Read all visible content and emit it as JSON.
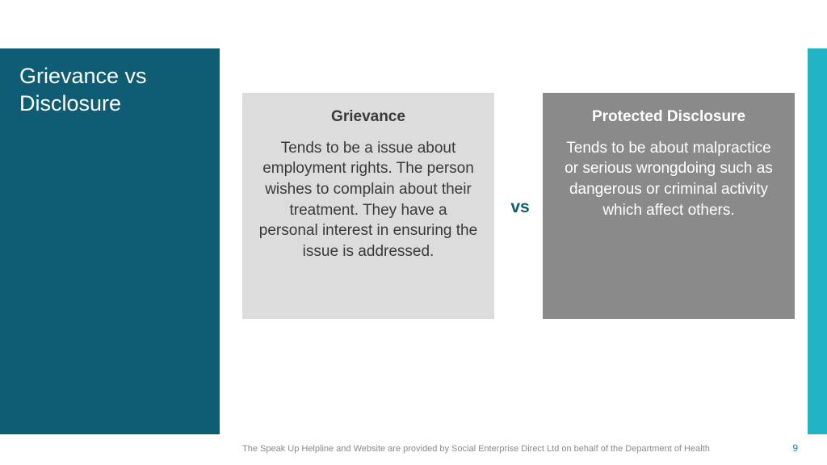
{
  "colors": {
    "panel_bg": "#0f5d74",
    "accent_bg": "#22b4c6",
    "card_left_bg": "#dcdcdc",
    "card_left_text": "#3a3a3a",
    "card_right_bg": "#8a8a8a",
    "card_right_text": "#ffffff",
    "vs_text": "#0f5d74",
    "footer_text": "#8a8a8a",
    "pagenum_text": "#0f8ca3",
    "title_text": "#ffffff"
  },
  "title": "Grievance vs Disclosure",
  "left_card": {
    "title": "Grievance",
    "body": "Tends to be a issue about employment rights. The person wishes to complain about their treatment. They have a personal interest in ensuring the issue is addressed."
  },
  "right_card": {
    "title": "Protected Disclosure",
    "body": "Tends to be about malpractice or serious wrongdoing such as dangerous or criminal activity which affect others."
  },
  "vs_label": "vs",
  "footer_text": "The Speak Up Helpline and Website are provided by Social Enterprise Direct Ltd on behalf of the Department of Health",
  "page_number": "9"
}
